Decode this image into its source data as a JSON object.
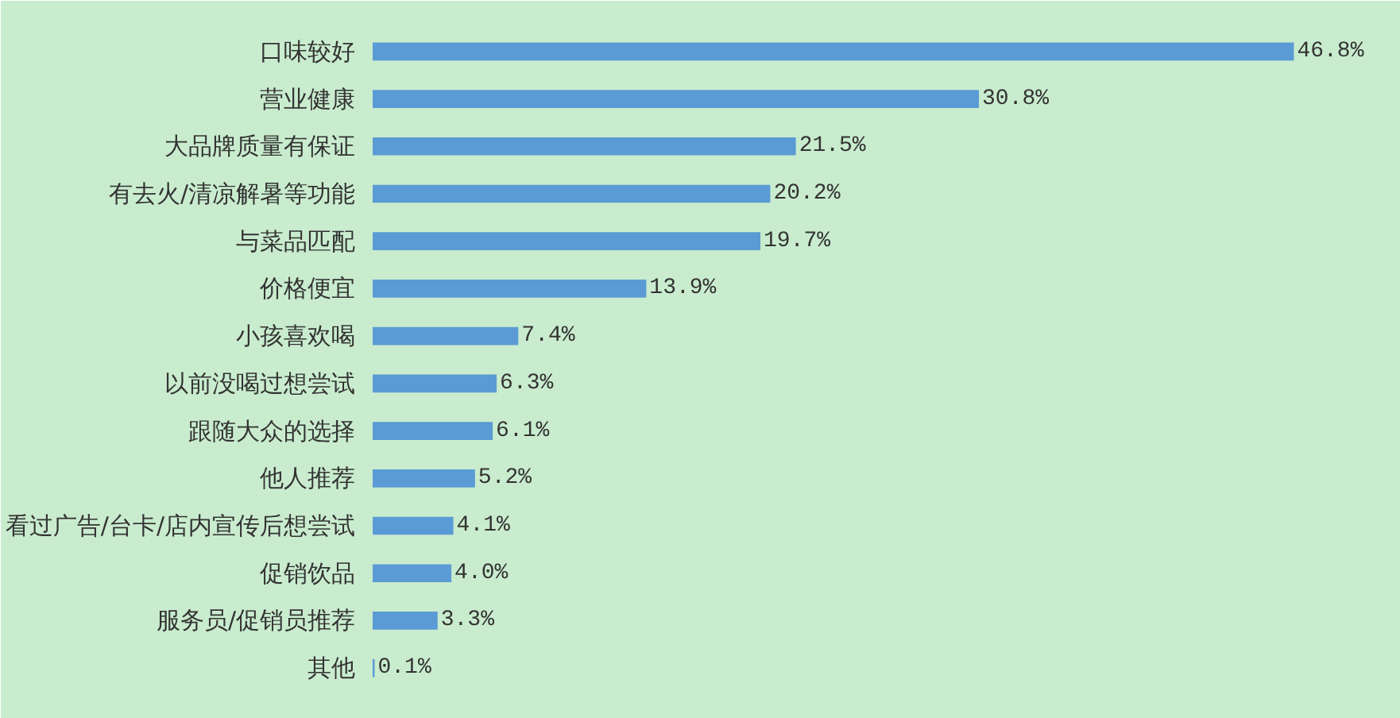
{
  "chart_data": {
    "type": "bar",
    "orientation": "horizontal",
    "color": "#5b9bd5",
    "categories": [
      "口味较好",
      "营业健康",
      "大品牌质量有保证",
      "有去火/清凉解暑等功能",
      "与菜品匹配",
      "价格便宜",
      "小孩喜欢喝",
      "以前没喝过想尝试",
      "跟随大众的选择",
      "他人推荐",
      "看过广告/台卡/店内宣传后想尝试",
      "促销饮品",
      "服务员/促销员推荐",
      "其他"
    ],
    "values": [
      46.8,
      30.8,
      21.5,
      20.2,
      19.7,
      13.9,
      7.4,
      6.3,
      6.1,
      5.2,
      4.1,
      4.0,
      3.3,
      0.1
    ],
    "value_labels": [
      "46.8%",
      "30.8%",
      "21.5%",
      "20.2%",
      "19.7%",
      "13.9%",
      "7.4%",
      "6.3%",
      "6.1%",
      "5.2%",
      "4.1%",
      "4.0%",
      "3.3%",
      "0.1%"
    ],
    "tick_labels": "y"
  }
}
